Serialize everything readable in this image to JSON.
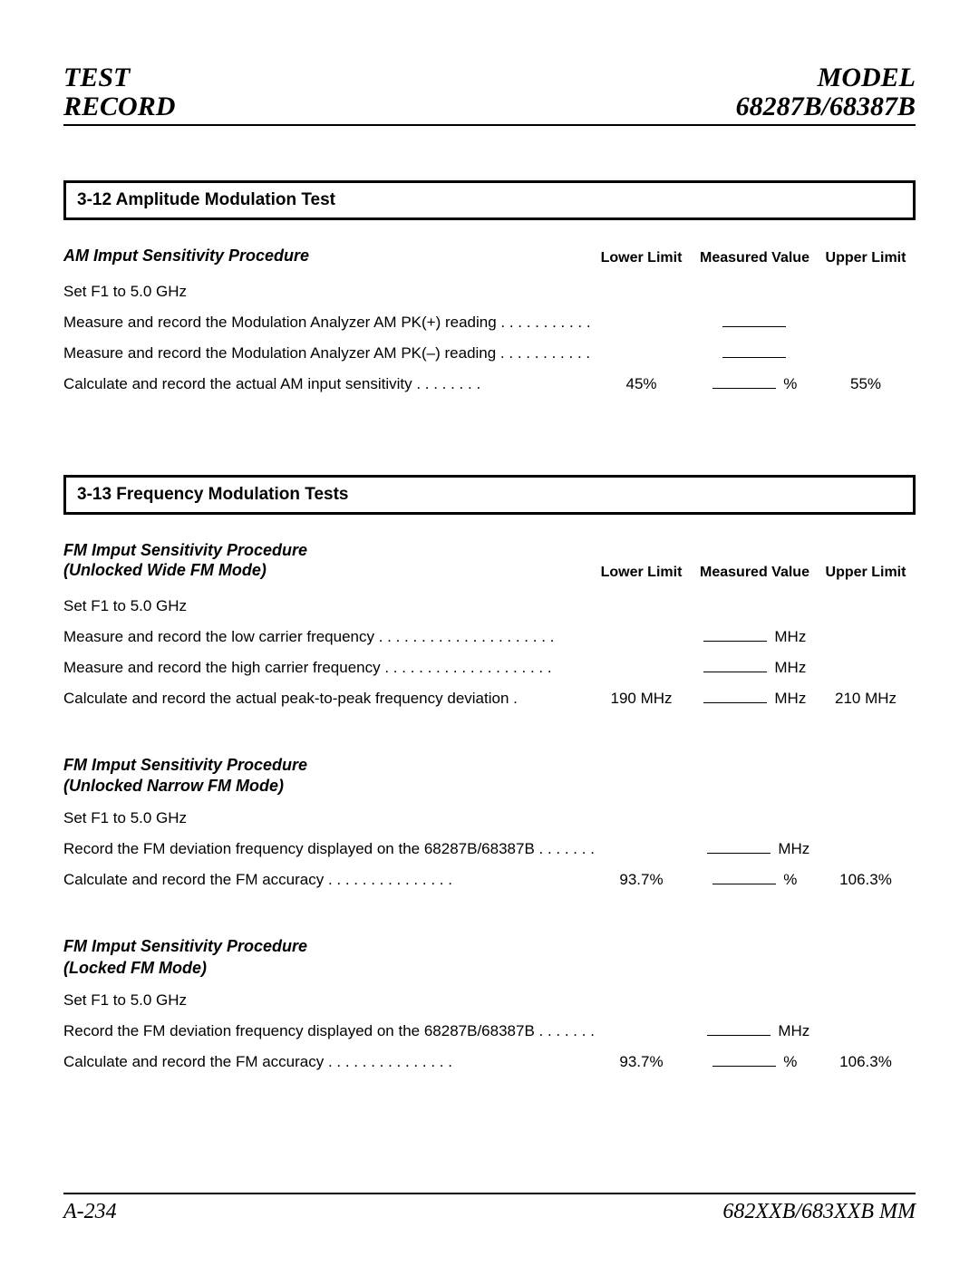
{
  "header": {
    "left_line1": "TEST",
    "left_line2": "RECORD",
    "right_line1": "MODEL",
    "right_line2": "68287B/68387B"
  },
  "footer": {
    "left": "A-234",
    "right": "682XXB/683XXB MM"
  },
  "columns": {
    "lower": "Lower Limit",
    "measured": "Measured Value",
    "upper": "Upper Limit"
  },
  "section_am": {
    "title": "3-12 Amplitude Modulation Test",
    "procedure_title": "AM Imput Sensitivity Procedure",
    "rows": [
      {
        "desc": "Set F1 to 5.0 GHz",
        "lower": "",
        "measured": "",
        "unit": "",
        "upper": "",
        "blank": false
      },
      {
        "desc": "Measure and record  the Modulation Analyzer AM PK(+) reading . . . . . . . . . . .",
        "lower": "",
        "measured": "",
        "unit": "",
        "upper": "",
        "blank": true
      },
      {
        "desc": "Measure and record the Modulation Analyzer AM PK(–) reading  . . . . . . . . . . .",
        "lower": "",
        "measured": "",
        "unit": "",
        "upper": "",
        "blank": true
      },
      {
        "desc": "Calculate and record the actual AM input sensitivity  . . . . . . . .",
        "lower": "45%",
        "measured": "",
        "unit": "%",
        "upper": "55%",
        "blank": true
      }
    ]
  },
  "section_fm": {
    "title": "3-13 Frequency Modulation Tests",
    "proc1": {
      "title_line1": "FM Imput Sensitivity Procedure",
      "title_line2": "(Unlocked Wide FM Mode)",
      "rows": [
        {
          "desc": "Set F1 to 5.0 GHz",
          "lower": "",
          "measured": "",
          "unit": "",
          "upper": "",
          "blank": false
        },
        {
          "desc": "Measure and record the low carrier frequency . . . . . . . . . . . . . . . . . . . . .",
          "lower": "",
          "measured": "",
          "unit": "MHz",
          "upper": "",
          "blank": true
        },
        {
          "desc": "Measure and record the high carrier frequency  . . . . . . . . . . . . . . . . . . . .",
          "lower": "",
          "measured": "",
          "unit": "MHz",
          "upper": "",
          "blank": true
        },
        {
          "desc": "Calculate and record the actual peak-to-peak frequency deviation .",
          "lower": "190 MHz",
          "measured": "",
          "unit": "MHz",
          "upper": "210 MHz",
          "blank": true
        }
      ]
    },
    "proc2": {
      "title_line1": "FM Imput Sensitivity Procedure",
      "title_line2": "(Unlocked Narrow FM Mode)",
      "rows": [
        {
          "desc": "Set F1 to 5.0 GHz",
          "lower": "",
          "measured": "",
          "unit": "",
          "upper": "",
          "blank": false
        },
        {
          "desc": "Record the FM deviation frequency displayed on the 68287B/68387B  . . . . . . . .",
          "lower": "",
          "measured": "",
          "unit": "MHz",
          "upper": "",
          "blank": true
        },
        {
          "desc": "Calculate and record the FM accuracy . . . . . . . . . . . . . . .",
          "lower": "93.7%",
          "measured": "",
          "unit": "%",
          "upper": "106.3%",
          "blank": true
        }
      ]
    },
    "proc3": {
      "title_line1": "FM Imput Sensitivity Procedure",
      "title_line2": "(Locked FM Mode)",
      "rows": [
        {
          "desc": "Set F1 to 5.0 GHz",
          "lower": "",
          "measured": "",
          "unit": "",
          "upper": "",
          "blank": false
        },
        {
          "desc": "Record the FM deviation frequency displayed on the 68287B/68387B  . . . . . . . .",
          "lower": "",
          "measured": "",
          "unit": "MHz",
          "upper": "",
          "blank": true
        },
        {
          "desc": "Calculate and record the FM accuracy . . . . . . . . . . . . . . .",
          "lower": "93.7%",
          "measured": "",
          "unit": "%",
          "upper": "106.3%",
          "blank": true
        }
      ]
    }
  }
}
